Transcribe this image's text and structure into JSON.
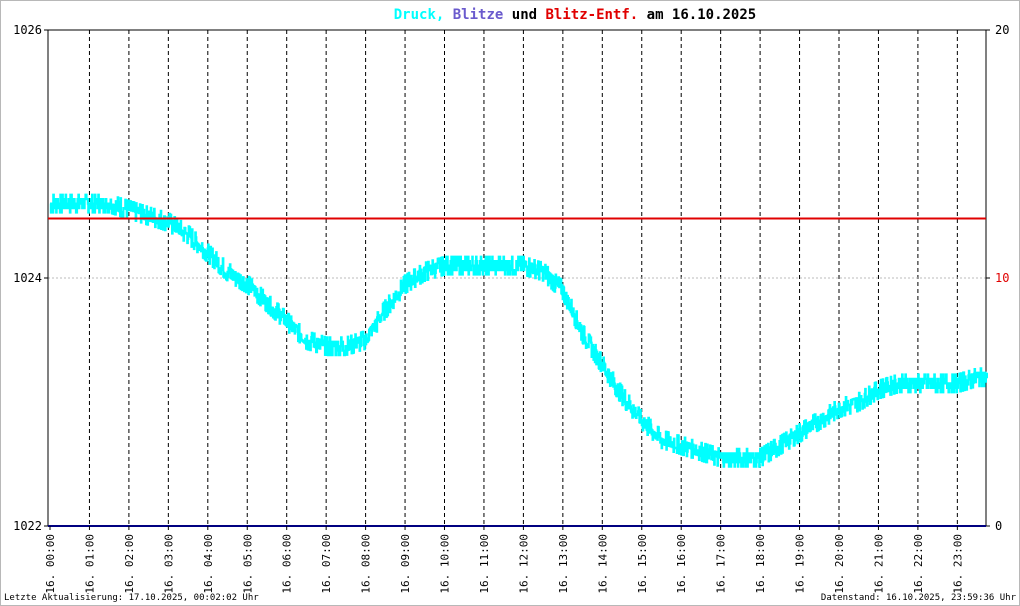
{
  "title": {
    "parts": [
      {
        "text": "Druck,",
        "color": "#00ffff"
      },
      {
        "text": " Blitze",
        "color": "#6a5acd"
      },
      {
        "text": " und ",
        "color": "#000000"
      },
      {
        "text": "Blitz-Entf.",
        "color": "#e00000"
      },
      {
        "text": " am 16.10.2025",
        "color": "#000000"
      }
    ]
  },
  "footer": {
    "left": "Letzte Aktualisierung: 17.10.2025, 00:02:02 Uhr",
    "right": "Datenstand: 16.10.2025, 23:59:36 Uhr"
  },
  "chart_data": {
    "type": "line",
    "grid": true,
    "left_axis": {
      "ylim": [
        1022,
        1026
      ],
      "ticks": [
        "1022",
        "1024",
        "1026"
      ]
    },
    "right_axis": {
      "ylim": [
        0,
        20
      ],
      "ticks": [
        "0",
        "10",
        "20"
      ],
      "tick_colors": [
        "#000000",
        "#e00000",
        "#000000"
      ]
    },
    "x_tick_labels": [
      "16. 00:00",
      "16. 01:00",
      "16. 02:00",
      "16. 03:00",
      "16. 04:00",
      "16. 05:00",
      "16. 06:00",
      "16. 07:00",
      "16. 08:00",
      "16. 09:00",
      "16. 10:00",
      "16. 11:00",
      "16. 12:00",
      "16. 13:00",
      "16. 14:00",
      "16. 15:00",
      "16. 16:00",
      "16. 17:00",
      "16. 18:00",
      "16. 19:00",
      "16. 20:00",
      "16. 21:00",
      "16. 22:00",
      "16. 23:00"
    ],
    "series": [
      {
        "color": "#00ffff",
        "axis": "left",
        "x_hours": [
          0,
          0.5,
          1,
          1.5,
          2,
          2.5,
          3,
          3.5,
          4,
          4.5,
          5,
          5.5,
          6,
          6.5,
          7,
          7.5,
          8,
          8.5,
          9,
          9.5,
          10,
          10.5,
          11,
          11.5,
          12,
          12.5,
          13,
          13.5,
          14,
          14.5,
          15,
          15.5,
          16,
          16.5,
          17,
          17.5,
          18,
          18.5,
          19,
          19.5,
          20,
          20.5,
          21,
          21.5,
          22,
          22.5,
          23,
          23.5
        ],
        "values": [
          1024.6,
          1024.6,
          1024.6,
          1024.6,
          1024.55,
          1024.5,
          1024.45,
          1024.35,
          1024.2,
          1024.05,
          1023.95,
          1023.8,
          1023.65,
          1023.5,
          1023.45,
          1023.45,
          1023.5,
          1023.75,
          1023.95,
          1024.05,
          1024.1,
          1024.1,
          1024.1,
          1024.1,
          1024.1,
          1024.05,
          1023.9,
          1023.55,
          1023.3,
          1023.05,
          1022.85,
          1022.7,
          1022.65,
          1022.6,
          1022.55,
          1022.55,
          1022.55,
          1022.65,
          1022.75,
          1022.85,
          1022.95,
          1023.0,
          1023.1,
          1023.15,
          1023.15,
          1023.15,
          1023.15,
          1023.2
        ],
        "noise": 0.06
      },
      {
        "color": "#e00000",
        "axis": "right",
        "type": "hline",
        "value": 12.4
      },
      {
        "color": "#000080",
        "axis": "right",
        "type": "hline",
        "value": 0
      }
    ]
  }
}
